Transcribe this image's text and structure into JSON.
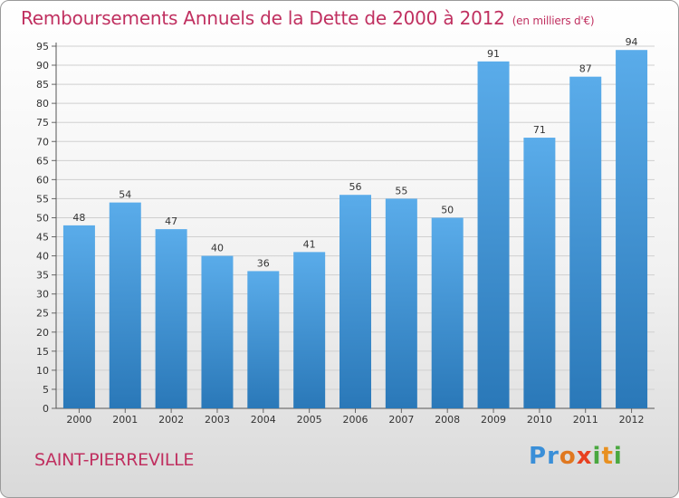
{
  "header": {
    "title": "Remboursements Annuels de la Dette de 2000 à 2012",
    "unit": "(en milliers d'€)"
  },
  "commune_name": "SAINT-PIERREVILLE",
  "brand": {
    "letters": [
      "P",
      "r",
      "o",
      "x",
      "i",
      "t",
      "i"
    ],
    "colors": [
      "#3a8fd8",
      "#3a8fd8",
      "#e07820",
      "#e84020",
      "#4aa840",
      "#e89020",
      "#4aa840"
    ]
  },
  "colors": {
    "title": "#c03060",
    "bar_top": "#5aacea",
    "bar_bottom": "#2a78b8"
  },
  "chart_data": {
    "type": "bar",
    "title": "Remboursements Annuels de la Dette de 2000 à 2012",
    "categories": [
      "2000",
      "2001",
      "2002",
      "2003",
      "2004",
      "2005",
      "2006",
      "2007",
      "2008",
      "2009",
      "2010",
      "2011",
      "2012"
    ],
    "values": [
      48,
      54,
      47,
      40,
      36,
      41,
      56,
      55,
      50,
      91,
      71,
      87,
      94
    ],
    "ylim": [
      0,
      95
    ],
    "yticks": [
      0,
      5,
      10,
      15,
      20,
      25,
      30,
      35,
      40,
      45,
      50,
      55,
      60,
      65,
      70,
      75,
      80,
      85,
      90,
      95
    ],
    "grid": true,
    "legend": "none"
  }
}
